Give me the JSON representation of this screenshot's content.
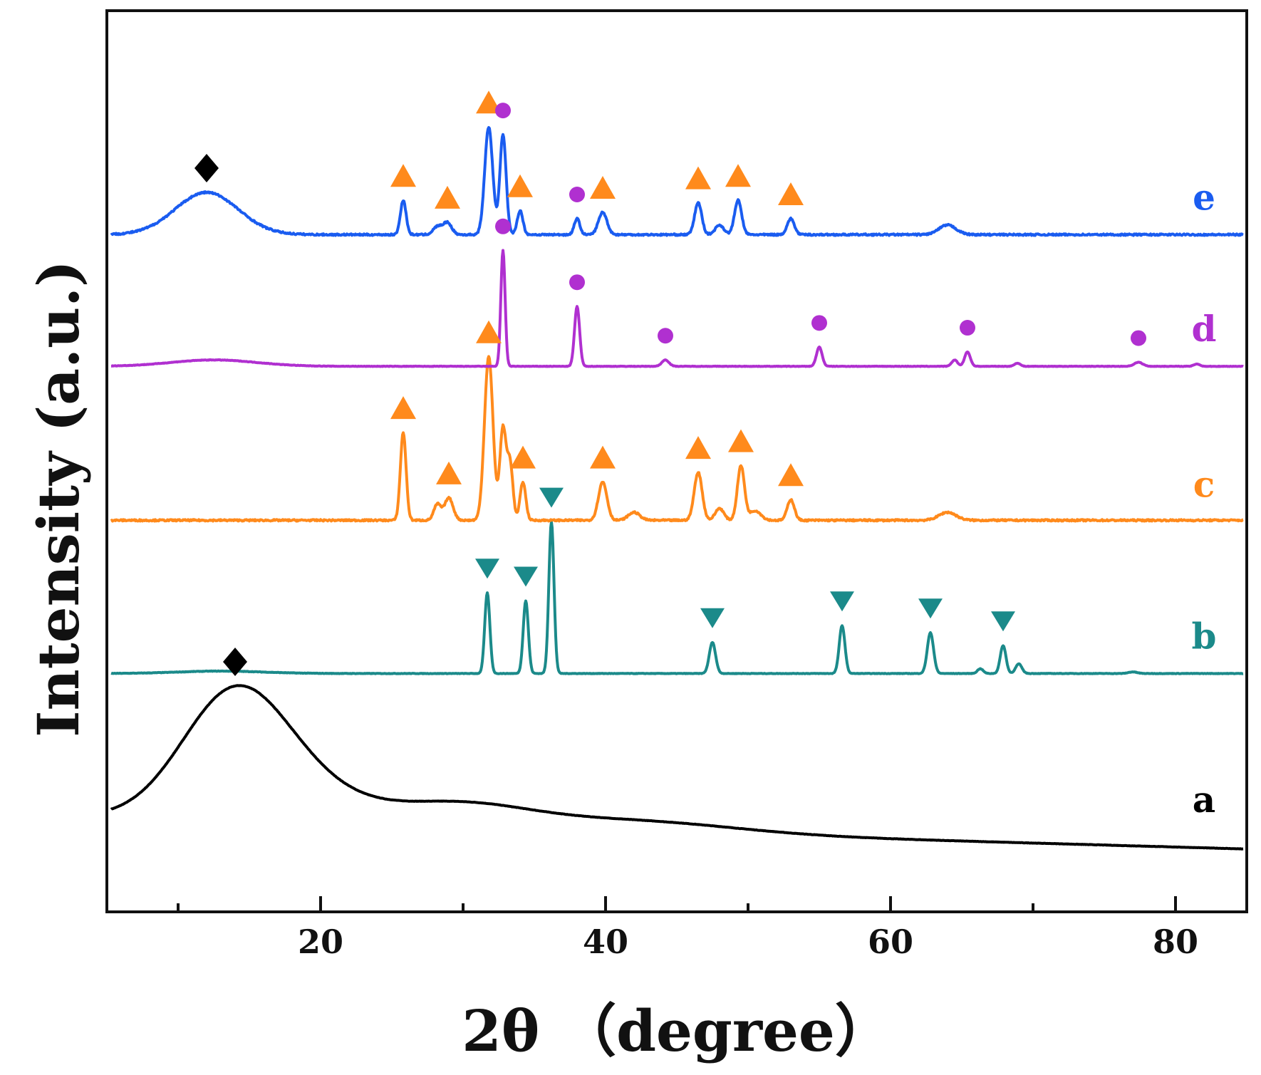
{
  "chart_data": {
    "type": "line",
    "xlabel": "2θ （degree）",
    "ylabel": "Intensity (a.u.)",
    "xlim": [
      5,
      85
    ],
    "xticks": [
      20,
      40,
      60,
      80
    ],
    "xticks_minor": [
      10,
      30,
      50,
      70
    ],
    "yticks": [],
    "grid": false,
    "series": [
      {
        "name": "a",
        "color": "#000000",
        "baseline": 0,
        "shape": {
          "base": 0.25,
          "slope": 0.005,
          "peaks": [
            [
              13.7,
              1.25,
              3.6
            ],
            [
              17.0,
              0.55,
              4.5
            ],
            [
              29.5,
              0.28,
              5.0
            ],
            [
              42.0,
              0.14,
              7.0
            ]
          ]
        },
        "marks": [
          {
            "x": 14.0,
            "symbol": "diamond"
          }
        ]
      },
      {
        "name": "b",
        "color": "#1b8a8a",
        "baseline": 2.05,
        "shape": {
          "base": 0.0,
          "peaks": [
            [
              13.0,
              0.03,
              3.0
            ],
            [
              31.7,
              1.01,
              0.18
            ],
            [
              34.4,
              0.91,
              0.18
            ],
            [
              36.2,
              1.9,
              0.18
            ],
            [
              47.5,
              0.39,
              0.22
            ],
            [
              56.6,
              0.6,
              0.2
            ],
            [
              62.8,
              0.51,
              0.22
            ],
            [
              66.3,
              0.06,
              0.2
            ],
            [
              67.9,
              0.35,
              0.2
            ],
            [
              69.0,
              0.12,
              0.22
            ],
            [
              77.0,
              0.02,
              0.3
            ]
          ]
        },
        "marks": [
          {
            "x": 31.7,
            "symbol": "triangle-down"
          },
          {
            "x": 34.4,
            "symbol": "triangle-down"
          },
          {
            "x": 36.2,
            "symbol": "triangle-down"
          },
          {
            "x": 47.5,
            "symbol": "triangle-down"
          },
          {
            "x": 56.6,
            "symbol": "triangle-down"
          },
          {
            "x": 62.8,
            "symbol": "triangle-down"
          },
          {
            "x": 67.9,
            "symbol": "triangle-down"
          }
        ]
      },
      {
        "name": "c",
        "color": "#ff8a1c",
        "baseline": 3.95,
        "shape": {
          "base": 0.02,
          "peaks": [
            [
              25.8,
              1.1,
              0.2
            ],
            [
              28.2,
              0.2,
              0.25
            ],
            [
              29.0,
              0.28,
              0.3
            ],
            [
              31.8,
              2.05,
              0.3
            ],
            [
              32.8,
              1.15,
              0.22
            ],
            [
              33.3,
              0.7,
              0.2
            ],
            [
              34.2,
              0.48,
              0.2
            ],
            [
              39.8,
              0.48,
              0.3
            ],
            [
              42.0,
              0.1,
              0.4
            ],
            [
              46.5,
              0.6,
              0.28
            ],
            [
              48.0,
              0.15,
              0.3
            ],
            [
              49.5,
              0.68,
              0.25
            ],
            [
              50.5,
              0.12,
              0.4
            ],
            [
              53.0,
              0.26,
              0.25
            ],
            [
              64.0,
              0.1,
              0.6
            ]
          ]
        },
        "marks": [
          {
            "x": 25.8,
            "symbol": "triangle-up"
          },
          {
            "x": 29.0,
            "symbol": "triangle-up"
          },
          {
            "x": 31.8,
            "symbol": "triangle-up"
          },
          {
            "x": 34.2,
            "symbol": "triangle-up"
          },
          {
            "x": 39.8,
            "symbol": "triangle-up"
          },
          {
            "x": 46.5,
            "symbol": "triangle-up"
          },
          {
            "x": 49.5,
            "symbol": "triangle-up"
          },
          {
            "x": 53.0,
            "symbol": "triangle-up"
          }
        ]
      },
      {
        "name": "d",
        "color": "#b030d0",
        "baseline": 5.9,
        "shape": {
          "base": 0.0,
          "peaks": [
            [
              12.5,
              0.08,
              3.0
            ],
            [
              32.8,
              1.45,
              0.15
            ],
            [
              38.0,
              0.75,
              0.18
            ],
            [
              44.2,
              0.08,
              0.25
            ],
            [
              55.0,
              0.24,
              0.2
            ],
            [
              64.5,
              0.08,
              0.2
            ],
            [
              65.4,
              0.18,
              0.2
            ],
            [
              68.9,
              0.04,
              0.2
            ],
            [
              77.4,
              0.05,
              0.3
            ],
            [
              81.5,
              0.03,
              0.2
            ]
          ]
        },
        "marks": [
          {
            "x": 32.8,
            "symbol": "circle"
          },
          {
            "x": 38.0,
            "symbol": "circle"
          },
          {
            "x": 44.2,
            "symbol": "circle"
          },
          {
            "x": 55.0,
            "symbol": "circle"
          },
          {
            "x": 65.4,
            "symbol": "circle"
          },
          {
            "x": 77.4,
            "symbol": "circle"
          }
        ]
      },
      {
        "name": "e",
        "color": "#1a5cf0",
        "baseline": 7.55,
        "shape": {
          "base": 0.0,
          "peaks": [
            [
              12.0,
              0.53,
              2.2
            ],
            [
              25.8,
              0.43,
              0.2
            ],
            [
              28.2,
              0.1,
              0.3
            ],
            [
              28.9,
              0.15,
              0.3
            ],
            [
              31.8,
              1.35,
              0.28
            ],
            [
              32.8,
              1.25,
              0.22
            ],
            [
              34.0,
              0.3,
              0.2
            ],
            [
              38.0,
              0.2,
              0.2
            ],
            [
              39.8,
              0.28,
              0.3
            ],
            [
              46.5,
              0.4,
              0.25
            ],
            [
              48.0,
              0.12,
              0.3
            ],
            [
              49.3,
              0.43,
              0.25
            ],
            [
              53.0,
              0.2,
              0.25
            ],
            [
              64.0,
              0.12,
              0.6
            ]
          ]
        },
        "marks": [
          {
            "x": 12.0,
            "symbol": "diamond"
          },
          {
            "x": 25.8,
            "symbol": "triangle-up"
          },
          {
            "x": 28.9,
            "symbol": "triangle-up"
          },
          {
            "x": 31.8,
            "symbol": "triangle-up"
          },
          {
            "x": 32.8,
            "symbol": "circle"
          },
          {
            "x": 34.0,
            "symbol": "triangle-up"
          },
          {
            "x": 38.0,
            "symbol": "circle"
          },
          {
            "x": 39.8,
            "symbol": "triangle-up"
          },
          {
            "x": 46.5,
            "symbol": "triangle-up"
          },
          {
            "x": 49.3,
            "symbol": "triangle-up"
          },
          {
            "x": 53.0,
            "symbol": "triangle-up"
          }
        ]
      }
    ],
    "symbol_colors": {
      "diamond": "#000000",
      "triangle-down": "#1b8a8a",
      "triangle-up": "#ff8a1c",
      "circle": "#b030d0"
    }
  }
}
